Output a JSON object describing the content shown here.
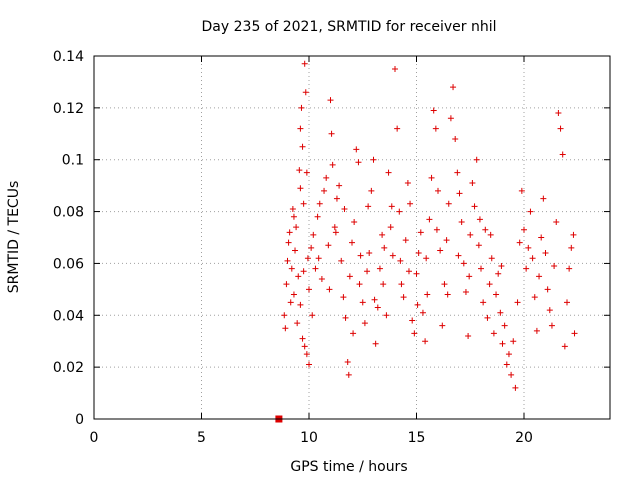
{
  "chart_data": {
    "type": "scatter",
    "title": "Day 235 of 2021, SRMTID for receiver nhil",
    "xlabel": "GPS time / hours",
    "ylabel": "SRMTID / TECUs",
    "xlim": [
      0,
      24
    ],
    "ylim": [
      0,
      0.14
    ],
    "xticks": [
      0,
      5,
      10,
      15,
      20
    ],
    "yticks": [
      0,
      0.02,
      0.04,
      0.06,
      0.08,
      0.1,
      0.12,
      0.14
    ],
    "xtick_labels": [
      "0",
      "5",
      "10",
      "15",
      "20"
    ],
    "ytick_labels": [
      "0",
      "0.02",
      "0.04",
      "0.06",
      "0.08",
      "0.1",
      "0.12",
      "0.14"
    ],
    "grid": true,
    "marker": "+",
    "color": "#dd0000",
    "series": [
      {
        "points": [
          [
            8.85,
            0.04
          ],
          [
            8.9,
            0.035
          ],
          [
            8.95,
            0.052
          ],
          [
            9.0,
            0.061
          ],
          [
            9.05,
            0.068
          ],
          [
            9.1,
            0.072
          ],
          [
            9.15,
            0.045
          ],
          [
            9.2,
            0.058
          ],
          [
            9.25,
            0.081
          ],
          [
            9.3,
            0.048
          ],
          [
            9.35,
            0.065
          ],
          [
            9.4,
            0.074
          ],
          [
            9.45,
            0.037
          ],
          [
            9.5,
            0.055
          ],
          [
            9.55,
            0.096
          ],
          [
            9.6,
            0.112
          ],
          [
            9.65,
            0.12
          ],
          [
            9.7,
            0.105
          ],
          [
            9.75,
            0.083
          ],
          [
            9.8,
            0.137
          ],
          [
            9.85,
            0.126
          ],
          [
            9.9,
            0.095
          ],
          [
            9.95,
            0.062
          ],
          [
            10.0,
            0.05
          ],
          [
            9.7,
            0.031
          ],
          [
            9.8,
            0.028
          ],
          [
            9.9,
            0.025
          ],
          [
            10.0,
            0.021
          ],
          [
            9.6,
            0.044
          ],
          [
            9.75,
            0.057
          ],
          [
            10.1,
            0.066
          ],
          [
            10.2,
            0.071
          ],
          [
            10.3,
            0.058
          ],
          [
            10.4,
            0.078
          ],
          [
            10.5,
            0.083
          ],
          [
            10.6,
            0.054
          ],
          [
            10.7,
            0.088
          ],
          [
            10.8,
            0.093
          ],
          [
            10.9,
            0.067
          ],
          [
            11.0,
            0.123
          ],
          [
            11.05,
            0.11
          ],
          [
            11.1,
            0.098
          ],
          [
            11.2,
            0.074
          ],
          [
            11.3,
            0.085
          ],
          [
            11.4,
            0.09
          ],
          [
            11.5,
            0.061
          ],
          [
            11.6,
            0.047
          ],
          [
            11.7,
            0.039
          ],
          [
            11.8,
            0.022
          ],
          [
            11.85,
            0.017
          ],
          [
            11.9,
            0.055
          ],
          [
            12.0,
            0.068
          ],
          [
            12.1,
            0.076
          ],
          [
            12.2,
            0.104
          ],
          [
            12.3,
            0.099
          ],
          [
            12.4,
            0.063
          ],
          [
            12.5,
            0.045
          ],
          [
            12.6,
            0.037
          ],
          [
            12.7,
            0.057
          ],
          [
            12.8,
            0.064
          ],
          [
            12.9,
            0.088
          ],
          [
            13.0,
            0.1
          ],
          [
            13.1,
            0.029
          ],
          [
            13.2,
            0.043
          ],
          [
            13.3,
            0.058
          ],
          [
            13.4,
            0.071
          ],
          [
            13.5,
            0.066
          ],
          [
            13.6,
            0.04
          ],
          [
            13.7,
            0.095
          ],
          [
            13.8,
            0.074
          ],
          [
            13.9,
            0.063
          ],
          [
            14.0,
            0.135
          ],
          [
            14.1,
            0.112
          ],
          [
            14.2,
            0.08
          ],
          [
            14.3,
            0.052
          ],
          [
            14.4,
            0.047
          ],
          [
            14.5,
            0.069
          ],
          [
            14.6,
            0.091
          ],
          [
            14.7,
            0.083
          ],
          [
            14.8,
            0.038
          ],
          [
            14.9,
            0.033
          ],
          [
            15.0,
            0.056
          ],
          [
            15.1,
            0.064
          ],
          [
            15.2,
            0.072
          ],
          [
            15.3,
            0.041
          ],
          [
            15.4,
            0.03
          ],
          [
            15.5,
            0.048
          ],
          [
            15.6,
            0.077
          ],
          [
            15.7,
            0.093
          ],
          [
            15.8,
            0.119
          ],
          [
            15.9,
            0.112
          ],
          [
            16.0,
            0.088
          ],
          [
            16.1,
            0.065
          ],
          [
            16.2,
            0.036
          ],
          [
            16.3,
            0.052
          ],
          [
            16.4,
            0.069
          ],
          [
            16.5,
            0.083
          ],
          [
            16.6,
            0.116
          ],
          [
            16.7,
            0.128
          ],
          [
            16.8,
            0.108
          ],
          [
            16.9,
            0.095
          ],
          [
            17.0,
            0.087
          ],
          [
            17.1,
            0.076
          ],
          [
            17.2,
            0.06
          ],
          [
            17.3,
            0.049
          ],
          [
            17.4,
            0.032
          ],
          [
            17.5,
            0.071
          ],
          [
            17.6,
            0.091
          ],
          [
            17.7,
            0.082
          ],
          [
            17.8,
            0.1
          ],
          [
            17.9,
            0.067
          ],
          [
            18.0,
            0.058
          ],
          [
            18.1,
            0.045
          ],
          [
            18.2,
            0.073
          ],
          [
            18.3,
            0.039
          ],
          [
            18.4,
            0.052
          ],
          [
            18.5,
            0.062
          ],
          [
            18.6,
            0.033
          ],
          [
            18.7,
            0.048
          ],
          [
            18.8,
            0.056
          ],
          [
            18.9,
            0.041
          ],
          [
            19.0,
            0.029
          ],
          [
            19.1,
            0.036
          ],
          [
            19.2,
            0.021
          ],
          [
            19.3,
            0.025
          ],
          [
            19.4,
            0.017
          ],
          [
            19.5,
            0.03
          ],
          [
            19.6,
            0.012
          ],
          [
            19.7,
            0.045
          ],
          [
            19.8,
            0.068
          ],
          [
            19.9,
            0.088
          ],
          [
            20.0,
            0.073
          ],
          [
            20.1,
            0.058
          ],
          [
            20.2,
            0.066
          ],
          [
            20.3,
            0.08
          ],
          [
            20.4,
            0.062
          ],
          [
            20.5,
            0.047
          ],
          [
            20.6,
            0.034
          ],
          [
            20.7,
            0.055
          ],
          [
            20.8,
            0.07
          ],
          [
            20.9,
            0.085
          ],
          [
            21.0,
            0.064
          ],
          [
            21.1,
            0.05
          ],
          [
            21.2,
            0.042
          ],
          [
            21.3,
            0.036
          ],
          [
            21.4,
            0.059
          ],
          [
            21.5,
            0.076
          ],
          [
            21.6,
            0.118
          ],
          [
            21.7,
            0.112
          ],
          [
            21.8,
            0.102
          ],
          [
            21.9,
            0.028
          ],
          [
            22.0,
            0.045
          ],
          [
            22.1,
            0.058
          ],
          [
            22.2,
            0.066
          ],
          [
            22.3,
            0.071
          ],
          [
            22.35,
            0.033
          ],
          [
            9.3,
            0.078
          ],
          [
            9.6,
            0.089
          ],
          [
            10.15,
            0.04
          ],
          [
            10.45,
            0.062
          ],
          [
            10.95,
            0.05
          ],
          [
            11.25,
            0.072
          ],
          [
            11.65,
            0.081
          ],
          [
            12.05,
            0.033
          ],
          [
            12.35,
            0.052
          ],
          [
            12.75,
            0.082
          ],
          [
            13.05,
            0.046
          ],
          [
            13.45,
            0.052
          ],
          [
            13.85,
            0.082
          ],
          [
            14.25,
            0.061
          ],
          [
            14.65,
            0.057
          ],
          [
            15.05,
            0.044
          ],
          [
            15.45,
            0.062
          ],
          [
            15.95,
            0.073
          ],
          [
            16.45,
            0.048
          ],
          [
            16.95,
            0.063
          ],
          [
            17.45,
            0.055
          ],
          [
            17.95,
            0.077
          ],
          [
            18.45,
            0.071
          ],
          [
            18.95,
            0.059
          ]
        ]
      },
      {
        "points": [
          [
            8.6,
            0.0
          ]
        ],
        "marker": "square"
      }
    ]
  }
}
